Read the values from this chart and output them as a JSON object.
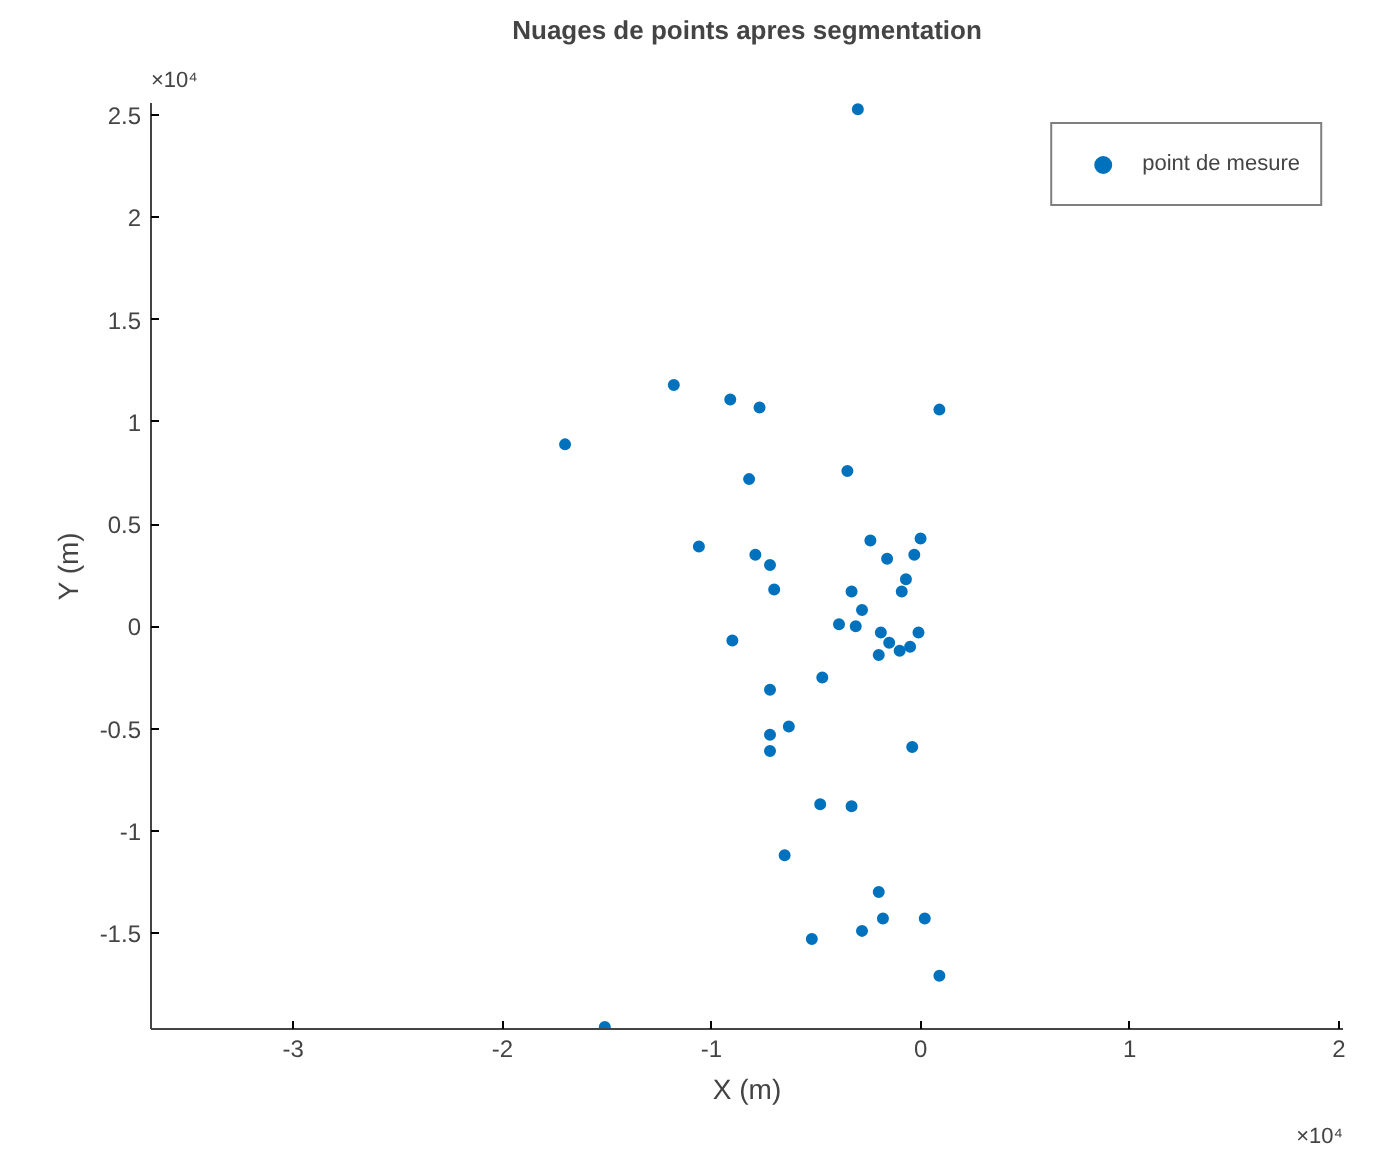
{
  "chart_data": {
    "type": "scatter",
    "title": "Nuages de points apres segmentation",
    "xlabel": "X (m)",
    "ylabel": "Y (m)",
    "annotations": [
      "×10⁴",
      "×10⁴"
    ],
    "series": [
      {
        "name": "point de mesure",
        "color": "#0072bd",
        "x": [
          -0.3,
          -1.18,
          -0.91,
          -0.77,
          0.09,
          -1.7,
          -0.82,
          -0.35,
          -1.06,
          -0.79,
          -0.72,
          -0.24,
          0,
          -0.16,
          -0.03,
          -0.7,
          -0.07,
          -0.09,
          -0.33,
          -0.28,
          -0.39,
          -0.31,
          -0.9,
          -0.19,
          -0.15,
          -0.01,
          -0.05,
          -0.1,
          -0.2,
          -0.47,
          -0.72,
          -0.63,
          -0.72,
          -0.72,
          -0.04,
          -0.48,
          -0.33,
          -0.65,
          -0.2,
          -0.18,
          0.02,
          -0.28,
          -0.52,
          0.09,
          -1.51
        ],
        "values": [
          2.53,
          1.18,
          1.11,
          1.07,
          1.06,
          0.89,
          0.72,
          0.76,
          0.39,
          0.35,
          0.3,
          0.42,
          0.43,
          0.33,
          0.35,
          0.18,
          0.23,
          0.17,
          0.17,
          0.08,
          0.01,
          0,
          -0.07,
          -0.03,
          -0.08,
          -0.03,
          -0.1,
          -0.12,
          -0.14,
          -0.25,
          -0.31,
          -0.49,
          -0.53,
          -0.61,
          -0.59,
          -0.87,
          -0.88,
          -1.12,
          -1.3,
          -1.43,
          -1.43,
          -1.49,
          -1.53,
          -1.71,
          -1.96
        ]
      }
    ],
    "xlim": [
      -3.68,
      2.02
    ],
    "ylim": [
      -1.97,
      2.56
    ],
    "xticks": [
      -3,
      -2,
      -1,
      0,
      1,
      2
    ],
    "yticks": [
      -1.5,
      -1,
      -0.5,
      0,
      0.5,
      1,
      1.5,
      2,
      2.5
    ],
    "grid": false,
    "legend": "top right",
    "marker": "circle"
  }
}
